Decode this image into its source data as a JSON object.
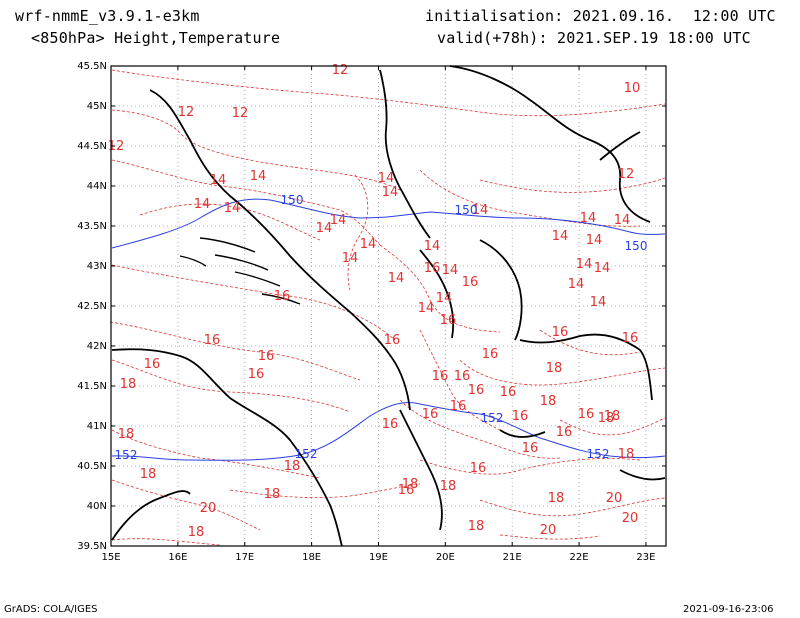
{
  "header": {
    "model": "wrf-nmmE_v3.9.1-e3km",
    "fields": "<850hPa> Height,Temperature",
    "init": "initialisation: 2021.09.16.  12:00 UTC",
    "valid": "valid(+78h): 2021.SEP.19 18:00 UTC"
  },
  "footer": {
    "left": "GrADS: COLA/IGES",
    "right": "2021-09-16-23:06"
  },
  "map": {
    "lat_ticks": [
      "45.5N",
      "45N",
      "44.5N",
      "44N",
      "43.5N",
      "43N",
      "42.5N",
      "42N",
      "41.5N",
      "41N",
      "40.5N",
      "40N",
      "39.5N"
    ],
    "lon_ticks": [
      "15E",
      "16E",
      "17E",
      "18E",
      "19E",
      "20E",
      "21E",
      "22E",
      "23E"
    ],
    "lat_range": [
      39.5,
      45.5
    ],
    "lon_range": [
      15,
      23.3
    ],
    "grid": "dotted",
    "colors": {
      "coast": "#000000",
      "temperature": "#e03232",
      "height": "#2a3fe0"
    },
    "temperature_labels": [
      "12",
      "12",
      "12",
      "10",
      "12",
      "12",
      "14",
      "14",
      "14",
      "14",
      "14",
      "14",
      "14",
      "14",
      "14",
      "14",
      "14",
      "14",
      "14",
      "14",
      "14",
      "14",
      "14",
      "14",
      "14",
      "14",
      "14",
      "14",
      "14",
      "14",
      "16",
      "16",
      "16",
      "16",
      "16",
      "16",
      "16",
      "16",
      "16",
      "16",
      "16",
      "16",
      "16",
      "16",
      "16",
      "16",
      "16",
      "16",
      "16",
      "16",
      "16",
      "16",
      "16",
      "16",
      "16",
      "18",
      "18",
      "18",
      "18",
      "18",
      "18",
      "18",
      "18",
      "18",
      "18",
      "18",
      "18",
      "18",
      "18",
      "18",
      "20",
      "20",
      "20",
      "20"
    ],
    "height_labels": [
      "150",
      "150",
      "150",
      "152",
      "152",
      "152",
      "152"
    ]
  }
}
